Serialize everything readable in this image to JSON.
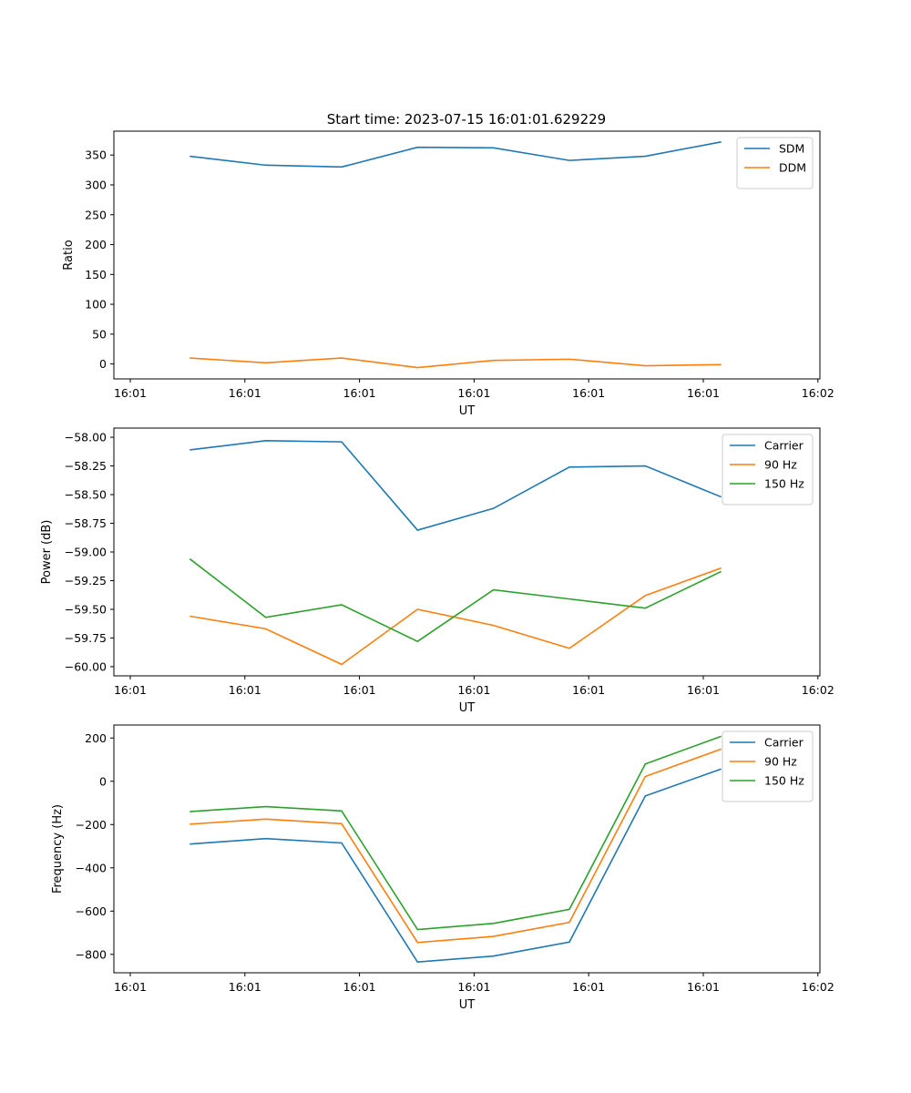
{
  "title": "Start time: 2023-07-15 16:01:01.629229",
  "chart_data": [
    {
      "type": "line",
      "xlabel": "UT",
      "ylabel": "Ratio",
      "x_tick_labels": [
        "16:01",
        "16:01",
        "16:01",
        "16:01",
        "16:01",
        "16:01",
        "16:01"
      ],
      "x_tick_extra_label": "16:02",
      "x": [
        1,
        2,
        3,
        4,
        5,
        6,
        7,
        8
      ],
      "xlim": [
        0,
        9.3
      ],
      "ylim": [
        -25,
        390
      ],
      "yticks": [
        0,
        50,
        100,
        150,
        200,
        250,
        300,
        350
      ],
      "legend": "upper-right",
      "series": [
        {
          "name": "SDM",
          "color": "#1f77b4",
          "values": [
            348,
            333,
            330,
            363,
            362,
            341,
            348,
            372
          ]
        },
        {
          "name": "DDM",
          "color": "#ff7f0e",
          "values": [
            10,
            2,
            10,
            -6,
            6,
            8,
            -3,
            -1
          ]
        }
      ]
    },
    {
      "type": "line",
      "xlabel": "UT",
      "ylabel": "Power (dB)",
      "x_tick_labels": [
        "16:01",
        "16:01",
        "16:01",
        "16:01",
        "16:01",
        "16:01",
        "16:01"
      ],
      "x_tick_extra_label": "16:02",
      "x": [
        1,
        2,
        3,
        4,
        5,
        6,
        7,
        8
      ],
      "xlim": [
        0,
        9.3
      ],
      "ylim": [
        -60.08,
        -57.92
      ],
      "yticks": [
        -58.0,
        -58.25,
        -58.5,
        -58.75,
        -59.0,
        -59.25,
        -59.5,
        -59.75,
        -60.0
      ],
      "ytick_labels": [
        "−58.00",
        "−58.25",
        "−58.50",
        "−58.75",
        "−59.00",
        "−59.25",
        "−59.50",
        "−59.75",
        "−60.00"
      ],
      "legend": "upper-right",
      "series": [
        {
          "name": "Carrier",
          "color": "#1f77b4",
          "values": [
            -58.11,
            -58.03,
            -58.04,
            -58.81,
            -58.62,
            -58.26,
            -58.25,
            -58.52
          ]
        },
        {
          "name": "90 Hz",
          "color": "#ff7f0e",
          "values": [
            -59.56,
            -59.67,
            -59.98,
            -59.5,
            -59.64,
            -59.84,
            -59.38,
            -59.14
          ]
        },
        {
          "name": "150 Hz",
          "color": "#2ca02c",
          "values": [
            -59.06,
            -59.57,
            -59.46,
            -59.78,
            -59.33,
            -59.41,
            -59.49,
            -59.17
          ]
        }
      ]
    },
    {
      "type": "line",
      "xlabel": "UT",
      "ylabel": "Frequency (Hz)",
      "x_tick_labels": [
        "16:01",
        "16:01",
        "16:01",
        "16:01",
        "16:01",
        "16:01",
        "16:01"
      ],
      "x_tick_extra_label": "16:02",
      "x": [
        1,
        2,
        3,
        4,
        5,
        6,
        7,
        8
      ],
      "xlim": [
        0,
        9.3
      ],
      "ylim": [
        -885,
        260
      ],
      "yticks": [
        200,
        0,
        -200,
        -400,
        -600,
        -800
      ],
      "ytick_labels": [
        "200",
        "0",
        "−200",
        "−400",
        "−600",
        "−800"
      ],
      "legend": "upper-right",
      "series": [
        {
          "name": "Carrier",
          "color": "#1f77b4",
          "values": [
            -290,
            -265,
            -285,
            -835,
            -808,
            -743,
            -68,
            57
          ]
        },
        {
          "name": "90 Hz",
          "color": "#ff7f0e",
          "values": [
            -198,
            -175,
            -196,
            -745,
            -717,
            -652,
            22,
            149
          ]
        },
        {
          "name": "150 Hz",
          "color": "#2ca02c",
          "values": [
            -140,
            -117,
            -137,
            -685,
            -657,
            -592,
            80,
            208
          ]
        }
      ]
    }
  ]
}
